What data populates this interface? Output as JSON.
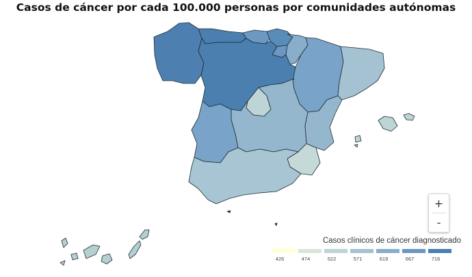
{
  "title": "Casos de cáncer por cada 100.000 personas por comunidades autónomas",
  "legend": {
    "title": "Casos clínicos de cáncer diagnosticado",
    "bins": [
      {
        "label": "426",
        "color": "#ffffd6"
      },
      {
        "label": "474",
        "color": "#d8e6da"
      },
      {
        "label": "522",
        "color": "#bed4d6"
      },
      {
        "label": "571",
        "color": "#a4c2d2"
      },
      {
        "label": "619",
        "color": "#88aecc"
      },
      {
        "label": "667",
        "color": "#6a98c2"
      },
      {
        "label": "716",
        "color": "#4a7fb0"
      }
    ]
  },
  "zoom": {
    "in_label": "+",
    "out_label": "-"
  },
  "regions": {
    "galicia": "#4d80b1",
    "asturias": "#4a7fb0",
    "cantabria": "#6b99c2",
    "pais_vasco": "#5a8cba",
    "navarra": "#88aecc",
    "la_rioja": "#6a98c2",
    "castilla_y_leon": "#4a7fb0",
    "aragon": "#79a3c8",
    "cataluna": "#a4c2d2",
    "madrid": "#bed4d6",
    "castilla_la_mancha": "#94b7ce",
    "extremadura": "#79a3c8",
    "valencia": "#94b7ce",
    "murcia": "#c4d9d8",
    "andalucia": "#a8c5d3",
    "baleares": "#bed4d6",
    "canarias": "#b6cfd3",
    "ceuta_melilla": "#222222"
  }
}
